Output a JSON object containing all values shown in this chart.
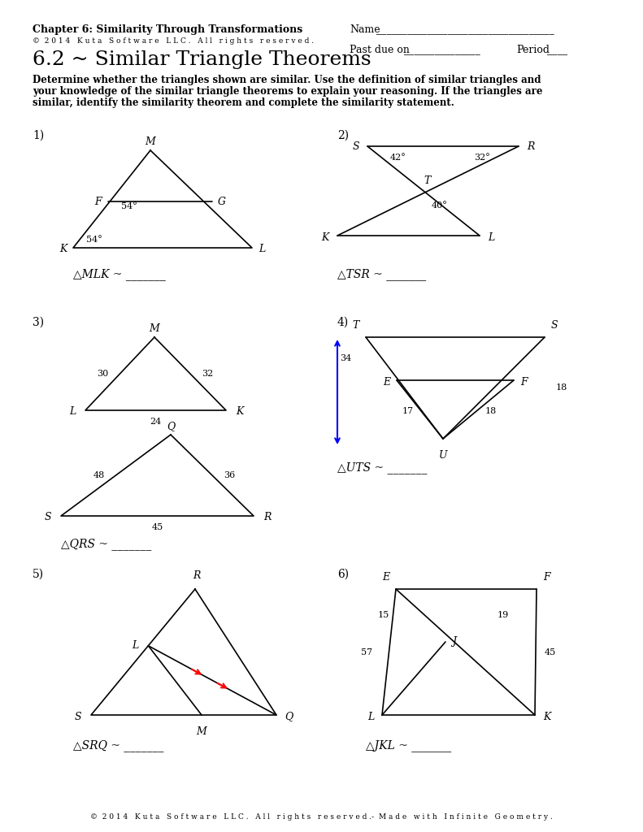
{
  "title_chapter": "Chapter 6: Similarity Through Transformations",
  "title_copyright": "©  2 0 1 4   K u t a   S o f t w a r e   L L C .   A l l   r i g h t s   r e s e r v e d .",
  "title_section": "6.2 ~ Similar Triangle Theorems",
  "name_label": "Name",
  "name_line": "___________________________________",
  "past_due_label": "Past due on",
  "past_due_line": "_______________",
  "period_label": "Period",
  "period_line": "____",
  "instructions": "Determine whether the triangles shown are similar. Use the definition of similar triangles and\nyour knowledge of the similar triangle theorems to explain your reasoning. If the triangles are\nsimilar, identify the similarity theorem and complete the similarity statement.",
  "footer": "©  2 0 1 4   K u t a   S o f t w a r e   L L C .   A l l   r i g h t s   r e s e r v e d .‑  M a d e   w i t h   I n f i n i t e   G e o m e t r y ."
}
